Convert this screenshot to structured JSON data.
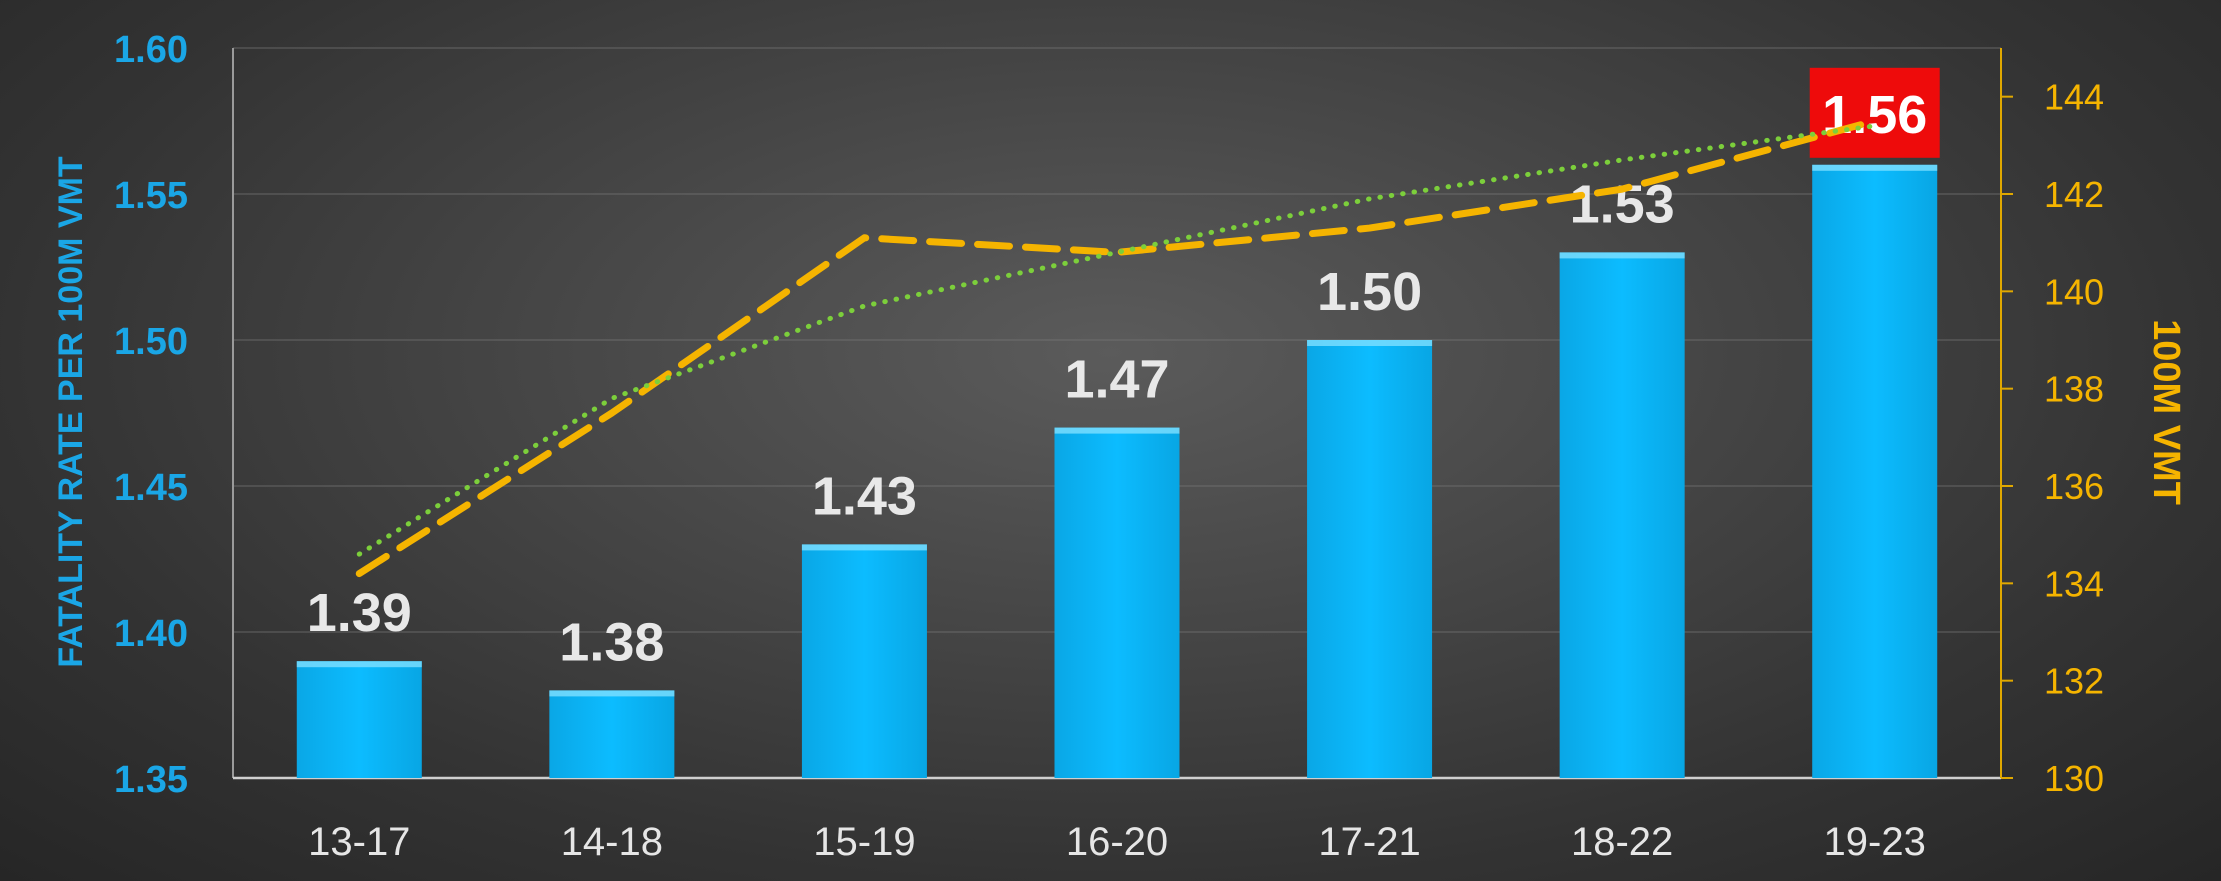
{
  "chart_data": {
    "type": "bar",
    "categories": [
      "13-17",
      "14-18",
      "15-19",
      "16-20",
      "17-21",
      "18-22",
      "19-23"
    ],
    "series": [
      {
        "type": "bar",
        "axis": "left",
        "values": [
          1.39,
          1.38,
          1.43,
          1.47,
          1.5,
          1.53,
          1.56
        ],
        "labels": [
          "1.39",
          "1.38",
          "1.43",
          "1.47",
          "1.50",
          "1.53",
          "1.56"
        ],
        "highlight_index": 6,
        "color": "#07b5f5",
        "highlight_color": "#ee0b0b"
      },
      {
        "type": "line",
        "style": "dashed",
        "axis": "right",
        "values": [
          134.2,
          137.5,
          141.1,
          140.8,
          141.3,
          142.1,
          143.5
        ],
        "color": "#f5b400"
      },
      {
        "type": "line",
        "style": "dotted",
        "axis": "right",
        "values": [
          134.6,
          137.8,
          139.7,
          140.8,
          141.9,
          142.7,
          143.4
        ],
        "color": "#7ccf3b"
      }
    ],
    "y_left": {
      "label": "FATALITY RATE PER 100M VMT",
      "ylim": [
        1.35,
        1.6
      ],
      "ticks": [
        "1.35",
        "1.40",
        "1.45",
        "1.50",
        "1.55",
        "1.60"
      ],
      "color": "#1aa6e6"
    },
    "y_right": {
      "label": "100M VMT",
      "ylim": [
        130,
        145
      ],
      "ticks": [
        "130",
        "132",
        "134",
        "136",
        "138",
        "140",
        "142",
        "144"
      ],
      "color": "#f5b400"
    },
    "grid": true,
    "legend": "none"
  }
}
